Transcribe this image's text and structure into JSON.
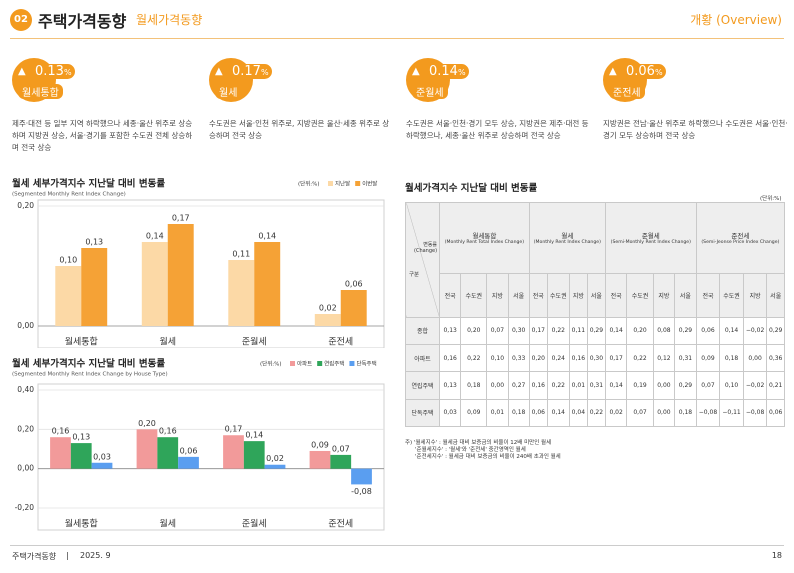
{
  "header": {
    "badge": "02",
    "title": "주택가격동향",
    "subtitle": "월세가격동향",
    "overview": "개황 (Overview)"
  },
  "summary": [
    {
      "value": "0.13",
      "unit": "%",
      "label": "월세통합",
      "description": "제주·대전 등 일부 지역 하락했으나 세종·울산 위주로 상승하며 지방권 상승, 서울·경기를 포함한 수도권 전체 상승하며 전국 상승"
    },
    {
      "value": "0.17",
      "unit": "%",
      "label": "월세",
      "description": "수도권은 서울·인천 위주로, 지방권은 울산·세종 위주로 상승하며 전국 상승"
    },
    {
      "value": "0.14",
      "unit": "%",
      "label": "준월세",
      "description": "수도권은 서울·인천·경기 모두 상승, 지방권은 제주·대전 등 하락했으나, 세종·울산 위주로 상승하며 전국 상승"
    },
    {
      "value": "0.06",
      "unit": "%",
      "label": "준전세",
      "description": "지방권은 전남·울산 위주로 하락했으나 수도권은 서울·인천·경기 모두 상승하며 전국 상승"
    }
  ],
  "chart_data": [
    {
      "type": "bar",
      "title": "월세 세부가격지수 지난달 대비 변동률",
      "subtitle": "(Segmented Monthly Rent Index Change)",
      "unit": "(단위:%)",
      "categories": [
        "월세통합",
        "월세",
        "준월세",
        "준전세"
      ],
      "series": [
        {
          "name": "지난달",
          "color": "#fcd9a6",
          "values": [
            0.1,
            0.14,
            0.11,
            0.02
          ],
          "value_labels": [
            "0,10",
            "0,14",
            "0,11",
            "0,02"
          ]
        },
        {
          "name": "이번달",
          "color": "#f5a236",
          "values": [
            0.13,
            0.17,
            0.14,
            0.06
          ],
          "value_labels": [
            "0,13",
            "0,17",
            "0,14",
            "0,06"
          ]
        }
      ],
      "ylim": [
        0,
        0.2
      ],
      "yticks": [
        {
          "value": 0,
          "label": "0,00"
        },
        {
          "value": 0.2,
          "label": "0,20"
        }
      ]
    },
    {
      "type": "bar",
      "title": "월세 세부가격지수 지난달 대비 변동률",
      "subtitle": "(Segmented Monthly Rent Index Change by House Type)",
      "unit": "(단위:%)",
      "categories": [
        "월세통합",
        "월세",
        "준월세",
        "준전세"
      ],
      "series": [
        {
          "name": "아파트",
          "color": "#f29a9a",
          "values": [
            0.16,
            0.2,
            0.17,
            0.09
          ],
          "value_labels": [
            "0,16",
            "0,20",
            "0,17",
            "0,09"
          ]
        },
        {
          "name": "연립주택",
          "color": "#2fa55a",
          "values": [
            0.13,
            0.16,
            0.14,
            0.07
          ],
          "value_labels": [
            "0,13",
            "0,16",
            "0,14",
            "0,07"
          ]
        },
        {
          "name": "단독주택",
          "color": "#5a9ef0",
          "values": [
            0.03,
            0.06,
            0.02,
            -0.08
          ],
          "value_labels": [
            "0,03",
            "0,06",
            "0,02",
            "-0,08"
          ]
        }
      ],
      "ylim": [
        -0.2,
        0.4
      ],
      "yticks": [
        {
          "value": -0.2,
          "label": "-0,20"
        },
        {
          "value": 0,
          "label": "0,00"
        },
        {
          "value": 0.2,
          "label": "0,20"
        },
        {
          "value": 0.4,
          "label": "0,40"
        }
      ]
    }
  ],
  "table": {
    "title": "월세가격지수 지난달 대비 변동률",
    "unit": "(단위:%)",
    "corner_top": "변동률 (Change)",
    "corner_bottom": "구분",
    "groups": [
      {
        "name": "월세통합",
        "sub": "(Monthly Rent Total Index Change)"
      },
      {
        "name": "월세",
        "sub": "(Monthly Rent Index Change)"
      },
      {
        "name": "준월세",
        "sub": "(Semi-Monthly Rent Index Change)"
      },
      {
        "name": "준전세",
        "sub": "(Semi-Jeonse Price Index Change)"
      }
    ],
    "subcolumns": [
      "전국",
      "수도권",
      "지방",
      "서울"
    ],
    "rows": [
      {
        "label": "종합",
        "cells": [
          "0,13",
          "0,20",
          "0,07",
          "0,30",
          "0,17",
          "0,22",
          "0,11",
          "0,29",
          "0,14",
          "0,20",
          "0,08",
          "0,29",
          "0,06",
          "0,14",
          "−0,02",
          "0,29"
        ]
      },
      {
        "label": "아파트",
        "cells": [
          "0,16",
          "0,22",
          "0,10",
          "0,33",
          "0,20",
          "0,24",
          "0,16",
          "0,30",
          "0,17",
          "0,22",
          "0,12",
          "0,31",
          "0,09",
          "0,18",
          "0,00",
          "0,36"
        ]
      },
      {
        "label": "연립주택",
        "cells": [
          "0,13",
          "0,18",
          "0,00",
          "0,27",
          "0,16",
          "0,22",
          "0,01",
          "0,31",
          "0,14",
          "0,19",
          "0,00",
          "0,29",
          "0,07",
          "0,10",
          "−0,02",
          "0,21"
        ]
      },
      {
        "label": "단독주택",
        "cells": [
          "0,03",
          "0,09",
          "0,01",
          "0,18",
          "0,06",
          "0,14",
          "0,04",
          "0,22",
          "0,02",
          "0,07",
          "0,00",
          "0,18",
          "−0,08",
          "−0,11",
          "−0,08",
          "0,06"
        ]
      }
    ]
  },
  "notes": [
    "주) '월세지수' : 월세금 대비 보증금의 비율이 12배 미만인 월세",
    "'준월세지수' : '월세'와 '준전세' 중간영역인 월세",
    "'준전세지수' : 월세금 대비 보증금의 비율이 240배 초과인 월세"
  ],
  "footer": {
    "left": "주택가격동향",
    "date": "2025. 9",
    "page": "18"
  }
}
